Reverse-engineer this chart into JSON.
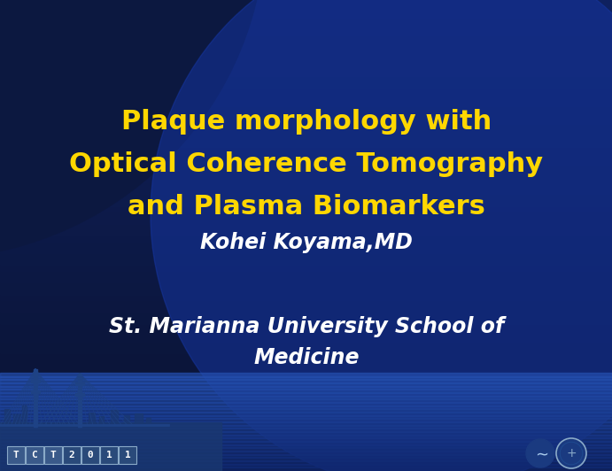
{
  "title_line1": "Plaque morphology with",
  "title_line2": "Optical Coherence Tomography",
  "title_line3": "and Plasma Biomarkers",
  "title_color": "#FFD700",
  "author": "Kohei Koyama,MD",
  "author_color": "#FFFFFF",
  "institution_line1": "St. Marianna University School of",
  "institution_line2": "Medicine",
  "institution_color": "#FFFFFF",
  "bg_dark": "#0A1230",
  "bg_mid": "#0E1E55",
  "bg_light_bottom": "#1A3A8A",
  "circle_dark": "#0A1840",
  "circle_mid": "#142880",
  "circle_right": "#1A3A90",
  "figwidth": 6.91,
  "figheight": 5.32,
  "title_fontsize": 22,
  "author_fontsize": 17,
  "institution_fontsize": 17,
  "tct_chars": [
    "T",
    "C",
    "T",
    "2",
    "0",
    "1",
    "1"
  ],
  "tct_colors_bg": [
    "#3A5A8A",
    "#3A5A8A",
    "#3A5A8A",
    "#2A4A7A",
    "#2A4A7A",
    "#2A4A7A",
    "#2A4A7A"
  ],
  "tct_edge_color": "#8AAAC8"
}
